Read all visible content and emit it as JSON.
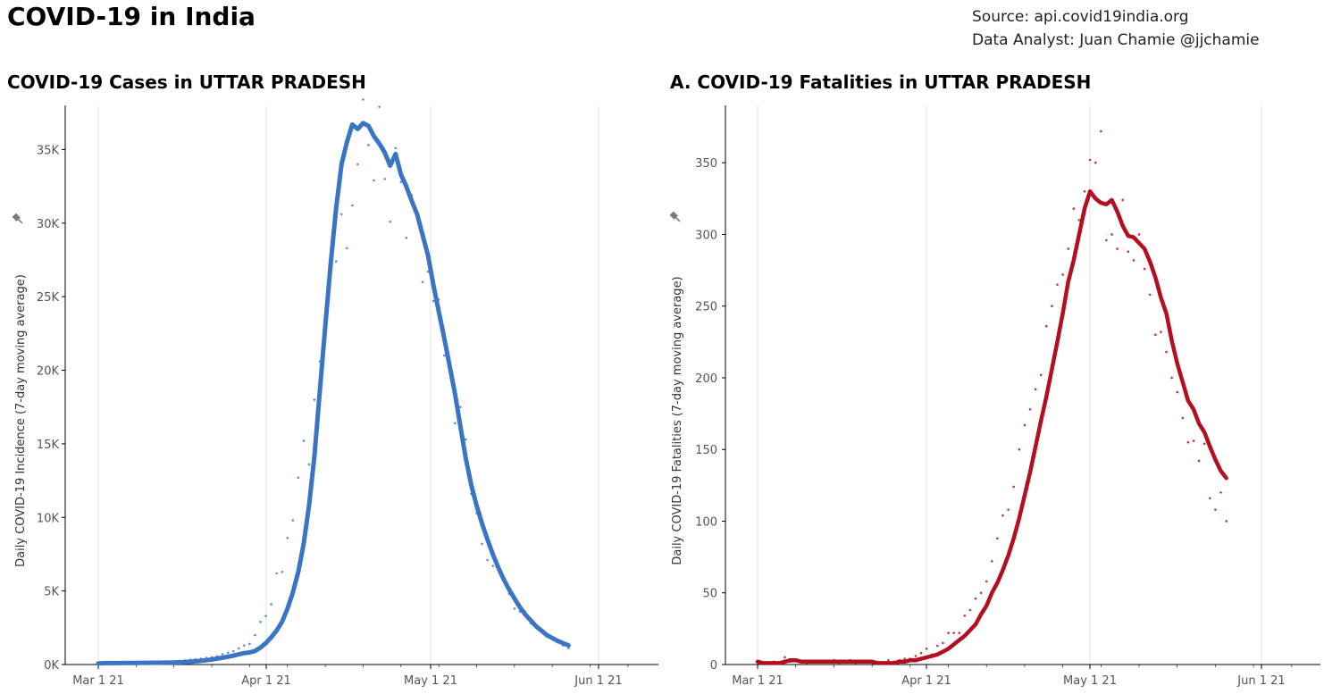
{
  "page_title": "COVID-19 in India",
  "source": {
    "line1": "Source: api.covid19india.org",
    "line2": "Data Analyst:  Juan Chamie @jjchamie"
  },
  "colors": {
    "cases": "#3a74c4",
    "cases_dots": "#5b8fd6",
    "fatalities": "#b40f20",
    "fatalities_dots": "#c8323f",
    "grid": "#e6e6e6"
  },
  "chart_data": [
    {
      "type": "line",
      "title": "COVID-19 Cases in UTTAR PRADESH",
      "ylabel": "Daily COVID-19 Incidence (7-day moving average)",
      "xlabel": "",
      "x_ticks": [
        "Mar 1 21",
        "Apr 1 21",
        "May 1 21",
        "Jun 1 21"
      ],
      "y_ticks": [
        "0K",
        "5K",
        "10K",
        "15K",
        "20K",
        "25K",
        "30K",
        "35K"
      ],
      "ylim": [
        0,
        38000
      ],
      "x_start": "Mar 1 21",
      "series": [
        {
          "kind": "line",
          "values": [
            80,
            90,
            95,
            100,
            100,
            105,
            110,
            110,
            115,
            115,
            120,
            120,
            125,
            130,
            140,
            150,
            170,
            190,
            220,
            250,
            290,
            340,
            400,
            460,
            530,
            600,
            690,
            780,
            820,
            920,
            1150,
            1450,
            1850,
            2300,
            2900,
            3800,
            4900,
            6300,
            8200,
            10800,
            14200,
            18600,
            23000,
            27200,
            31000,
            34000,
            35500,
            36700,
            36400,
            36800,
            36600,
            35900,
            35400,
            34800,
            33900,
            34700,
            33300,
            32500,
            31500,
            30600,
            29200,
            27800,
            25800,
            24000,
            22200,
            20300,
            18400,
            16200,
            14000,
            12200,
            10800,
            9600,
            8500,
            7500,
            6600,
            5800,
            5100,
            4500,
            3900,
            3400,
            3000,
            2600,
            2300,
            2000,
            1800,
            1600,
            1450,
            1300
          ]
        },
        {
          "kind": "daily",
          "values": [
            50,
            60,
            70,
            80,
            90,
            100,
            120,
            100,
            130,
            150,
            120,
            160,
            180,
            200,
            220,
            250,
            280,
            320,
            360,
            400,
            450,
            500,
            560,
            700,
            800,
            900,
            1100,
            1300,
            1400,
            2000,
            2900,
            3300,
            4100,
            6200,
            6300,
            8600,
            9800,
            12700,
            15200,
            13600,
            18000,
            20600,
            22400,
            27400,
            27400,
            30600,
            28300,
            31200,
            34000,
            38400,
            35300,
            32900,
            37900,
            33000,
            30100,
            35100,
            32800,
            29000,
            31900,
            30300,
            26000,
            26700,
            24700,
            24800,
            21000,
            20500,
            16400,
            17500,
            15300,
            11600,
            10300,
            8200,
            7100,
            6700,
            6500,
            5700,
            4800,
            3800,
            3600,
            3600,
            2800,
            2600,
            2300,
            1900,
            1700,
            1500,
            1300,
            1100
          ]
        }
      ]
    },
    {
      "type": "line",
      "title": "A. COVID-19 Fatalities in UTTAR PRADESH",
      "ylabel": "Daily COVID-19 Fatalities (7-day moving average)",
      "xlabel": "",
      "x_ticks": [
        "Mar 1 21",
        "Apr 1 21",
        "May 1 21",
        "Jun 1 21"
      ],
      "y_ticks": [
        "0",
        "50",
        "100",
        "150",
        "200",
        "250",
        "300",
        "350"
      ],
      "ylim": [
        0,
        390
      ],
      "x_start": "Mar 1 21",
      "series": [
        {
          "kind": "line",
          "values": [
            2,
            1,
            1,
            1,
            1,
            2,
            3,
            3,
            2,
            2,
            2,
            2,
            2,
            2,
            2,
            2,
            2,
            2,
            2,
            2,
            2,
            2,
            1,
            1,
            1,
            1,
            2,
            2,
            3,
            3,
            4,
            5,
            6,
            7,
            9,
            11,
            14,
            17,
            20,
            24,
            28,
            35,
            41,
            50,
            57,
            66,
            76,
            88,
            102,
            118,
            134,
            152,
            170,
            187,
            206,
            225,
            245,
            267,
            282,
            300,
            318,
            330,
            325,
            322,
            321,
            324,
            316,
            306,
            299,
            298,
            294,
            290,
            281,
            270,
            256,
            245,
            226,
            210,
            197,
            184,
            178,
            168,
            162,
            152,
            143,
            135,
            130
          ]
        },
        {
          "kind": "daily",
          "values": [
            2,
            1,
            1,
            2,
            1,
            5,
            2,
            3,
            2,
            1,
            2,
            2,
            2,
            2,
            3,
            1,
            2,
            3,
            1,
            2,
            2,
            2,
            1,
            1,
            3,
            2,
            3,
            4,
            4,
            6,
            8,
            11,
            7,
            13,
            15,
            22,
            22,
            22,
            34,
            38,
            46,
            50,
            58,
            72,
            88,
            104,
            108,
            124,
            150,
            167,
            178,
            192,
            202,
            236,
            250,
            265,
            272,
            290,
            318,
            310,
            330,
            352,
            350,
            372,
            296,
            300,
            290,
            324,
            288,
            282,
            300,
            276,
            258,
            230,
            232,
            218,
            200,
            190,
            172,
            155,
            156,
            142,
            154,
            116,
            108,
            120,
            100
          ]
        }
      ]
    }
  ]
}
